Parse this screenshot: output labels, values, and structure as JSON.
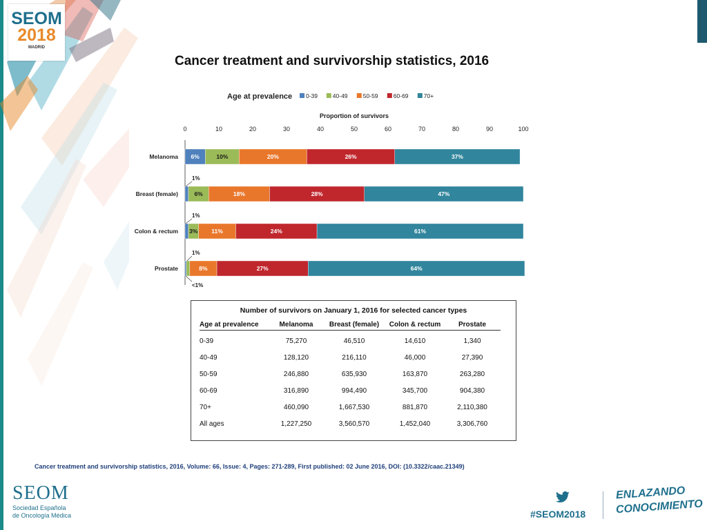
{
  "branding": {
    "logo_seom": "SEOM",
    "logo_year": "2018",
    "logo_city": "MADRID",
    "bottom_logo": "SEOM",
    "bottom_line1": "Sociedad  Española",
    "bottom_line2": "de Oncología Médica",
    "hashtag": "#SEOM2018",
    "tagline_1": "ENLAZANDO",
    "tagline_2": "CONOCIMIENTO",
    "twitter_icon": "twitter-bird-icon",
    "colors": {
      "teal": "#1e6f8c",
      "orange": "#e88a2b",
      "citation_blue": "#1f3f7a"
    }
  },
  "slide_title": "Cancer treatment and survivorship statistics, 2016",
  "chart_data": {
    "type": "bar",
    "stacked": true,
    "orientation": "horizontal",
    "xlabel": "Proportion of survivors",
    "legend_title": "Age at prevalence",
    "legend_position": "top",
    "xlim": [
      0,
      100
    ],
    "xticks": [
      0,
      10,
      20,
      30,
      40,
      50,
      60,
      70,
      80,
      90,
      100
    ],
    "categories": [
      "Melanoma",
      "Breast (female)",
      "Colon & rectum",
      "Prostate"
    ],
    "series": [
      {
        "name": "0-39",
        "color": "#4f81bd",
        "values": [
          6,
          1,
          1,
          0.4
        ],
        "labels": [
          "6%",
          "1%",
          "1%",
          "<1%"
        ]
      },
      {
        "name": "40-49",
        "color": "#9bbb59",
        "values": [
          10,
          6,
          3,
          1
        ],
        "labels": [
          "10%",
          "6%",
          "3%",
          "1%"
        ]
      },
      {
        "name": "50-59",
        "color": "#e9772b",
        "values": [
          20,
          18,
          11,
          8
        ],
        "labels": [
          "20%",
          "18%",
          "11%",
          "8%"
        ]
      },
      {
        "name": "60-69",
        "color": "#c0272d",
        "values": [
          26,
          28,
          24,
          27
        ],
        "labels": [
          "26%",
          "28%",
          "24%",
          "27%"
        ]
      },
      {
        "name": "70+",
        "color": "#31859c",
        "values": [
          37,
          47,
          61,
          64
        ],
        "labels": [
          "37%",
          "47%",
          "61%",
          "64%"
        ]
      }
    ]
  },
  "survivors_table": {
    "title": "Number of survivors on January 1, 2016 for selected cancer types",
    "headers": [
      "Age at prevalence",
      "Melanoma",
      "Breast (female)",
      "Colon & rectum",
      "Prostate"
    ],
    "rows": [
      [
        "0-39",
        "75,270",
        "46,510",
        "14,610",
        "1,340"
      ],
      [
        "40-49",
        "128,120",
        "216,110",
        "46,000",
        "27,390"
      ],
      [
        "50-59",
        "246,880",
        "635,930",
        "163,870",
        "263,280"
      ],
      [
        "60-69",
        "316,890",
        "994,490",
        "345,700",
        "904,380"
      ],
      [
        "70+",
        "460,090",
        "1,667,530",
        "881,870",
        "2,110,380"
      ],
      [
        "All ages",
        "1,227,250",
        "3,560,570",
        "1,452,040",
        "3,306,760"
      ]
    ]
  },
  "citation": "Cancer treatment and survivorship statistics, 2016, Volume: 66, Issue: 4, Pages: 271-289, First published: 02 June 2016, DOI: (10.3322/caac.21349)"
}
